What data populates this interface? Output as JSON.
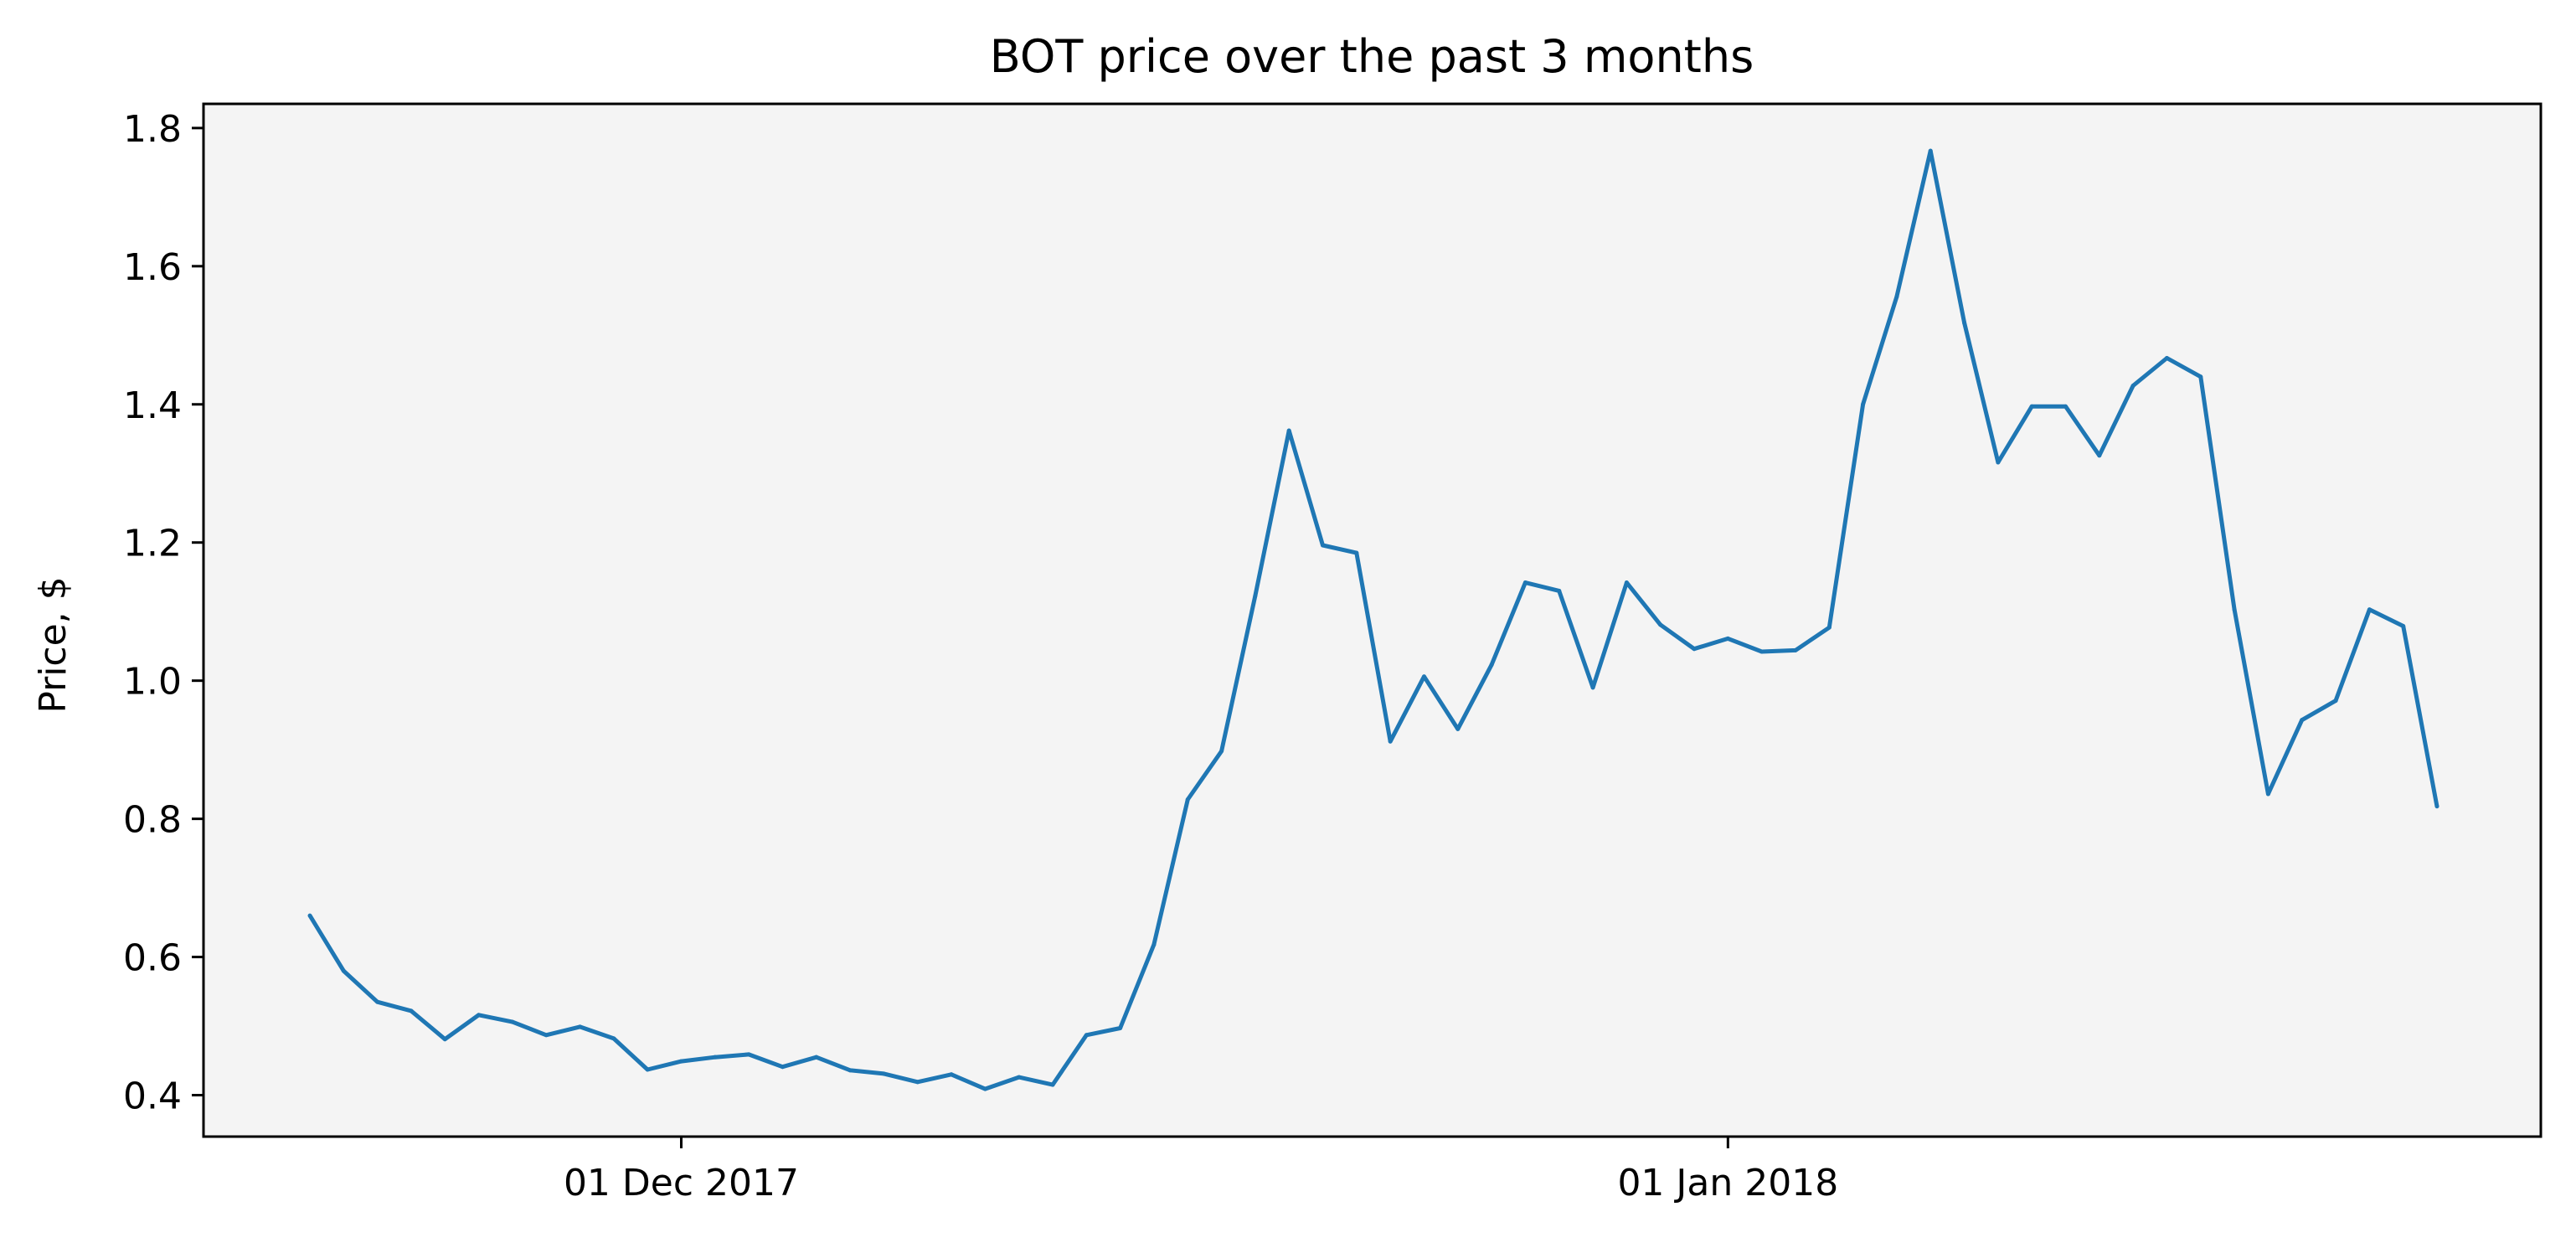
{
  "chart_data": {
    "type": "line",
    "title": "BOT price over the past 3 months",
    "xlabel": "",
    "ylabel": "Price, $",
    "x_start": "2017-11-20",
    "x_step_days": 1,
    "x_ticks": [
      {
        "date": "2017-12-01",
        "label": "01 Dec 2017"
      },
      {
        "date": "2018-01-01",
        "label": "01 Jan 2018"
      }
    ],
    "y_ticks": [
      0.4,
      0.6,
      0.8,
      1.0,
      1.2,
      1.4,
      1.6,
      1.8
    ],
    "y_tick_labels": [
      "0.4",
      "0.6",
      "0.8",
      "1.0",
      "1.2",
      "1.4",
      "1.6",
      "1.8"
    ],
    "ylim": [
      0.34,
      1.835
    ],
    "grid": false,
    "legend": "none",
    "series": [
      {
        "color": "#1f77b4",
        "values": [
          0.66,
          0.58,
          0.535,
          0.522,
          0.481,
          0.516,
          0.506,
          0.487,
          0.499,
          0.482,
          0.437,
          0.449,
          0.455,
          0.459,
          0.441,
          0.455,
          0.436,
          0.431,
          0.419,
          0.43,
          0.409,
          0.426,
          0.415,
          0.487,
          0.497,
          0.618,
          0.828,
          0.898,
          1.123,
          1.362,
          1.196,
          1.185,
          0.912,
          1.006,
          0.93,
          1.023,
          1.142,
          1.13,
          0.99,
          1.142,
          1.081,
          1.046,
          1.061,
          1.042,
          1.044,
          1.077,
          1.4,
          1.556,
          1.767,
          1.518,
          1.316,
          1.397,
          1.397,
          1.326,
          1.427,
          1.467,
          1.44,
          1.103,
          0.836,
          0.943,
          0.971,
          1.103,
          1.079,
          0.818
        ]
      }
    ]
  },
  "colors": {
    "plot_background": "#f4f4f4",
    "line": "#1f77b4",
    "axes": "#000000"
  }
}
